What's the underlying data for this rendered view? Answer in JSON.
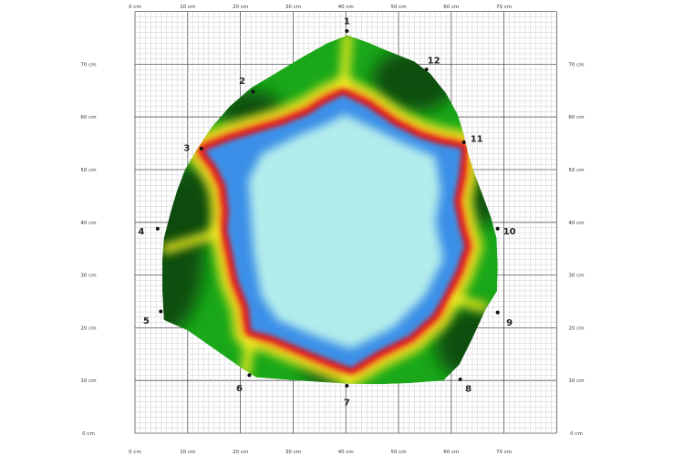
{
  "diagram": {
    "unit": "cm",
    "x_range": [
      0,
      80
    ],
    "y_range": [
      0,
      80
    ],
    "top_ticks": [
      "0 cm",
      "10 cm",
      "20 cm",
      "30 cm",
      "40 cm",
      "50 cm",
      "60 cm",
      "70 cm"
    ],
    "bottom_ticks": [
      "0 cm",
      "10 cm",
      "20 cm",
      "30 cm",
      "40 cm",
      "50 cm",
      "60 cm",
      "70 cm"
    ],
    "left_ticks": [
      "0 cm",
      "10 cm",
      "20 cm",
      "30 cm",
      "40 cm",
      "50 cm",
      "60 cm",
      "70 cm"
    ],
    "right_ticks": [
      "0 cm",
      "10 cm",
      "20 cm",
      "30 cm",
      "40 cm",
      "50 cm",
      "60 cm",
      "70 cm"
    ],
    "points": [
      {
        "label": "1",
        "x": 40.2,
        "y": 76.3
      },
      {
        "label": "12",
        "x": 55.3,
        "y": 69.0
      },
      {
        "label": "11",
        "x": 62.4,
        "y": 55.2
      },
      {
        "label": "10",
        "x": 68.8,
        "y": 38.8
      },
      {
        "label": "9",
        "x": 68.8,
        "y": 22.9
      },
      {
        "label": "8",
        "x": 61.7,
        "y": 10.2
      },
      {
        "label": "7",
        "x": 40.2,
        "y": 9.0
      },
      {
        "label": "6",
        "x": 21.7,
        "y": 11.0
      },
      {
        "label": "5",
        "x": 4.9,
        "y": 23.1
      },
      {
        "label": "4",
        "x": 4.3,
        "y": 38.8
      },
      {
        "label": "3",
        "x": 12.6,
        "y": 54.0
      },
      {
        "label": "2",
        "x": 22.4,
        "y": 64.8
      }
    ],
    "colors": {
      "center": "#b2ecec",
      "blue": "#3a8fe8",
      "red": "#e0141e",
      "orange": "#f4a020",
      "yellow": "#f4ee20",
      "green": "#1aa81a",
      "dark_green": "#0a4a0a"
    }
  }
}
